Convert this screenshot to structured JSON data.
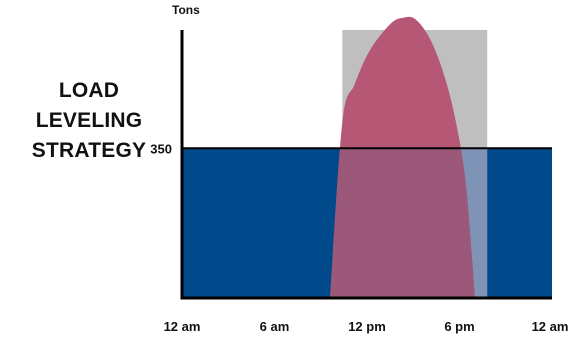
{
  "figure": {
    "title_lines": [
      "LOAD",
      "LEVELING",
      "STRATEGY"
    ]
  },
  "chart_data": {
    "type": "area",
    "title": "LOAD LEVELING STRATEGY",
    "ylabel": "Tons",
    "xlabel": "",
    "x_tick_labels": [
      "12 am",
      "6 am",
      "12 pm",
      "6 pm",
      "12 am"
    ],
    "x_tick_hours": [
      0,
      6,
      12,
      18,
      24
    ],
    "xlim": [
      0,
      24
    ],
    "ylim": [
      0,
      650
    ],
    "y_tick_labels": [
      "350"
    ],
    "y_tick_values": [
      350
    ],
    "reference_line": {
      "value": 350
    },
    "highlight_band": {
      "x_start": 10.4,
      "x_end": 19.8
    },
    "series": [
      {
        "kind": "constant-level",
        "x": [
          0,
          24
        ],
        "y": [
          350,
          350
        ]
      },
      {
        "kind": "peak-load",
        "x": [
          9.6,
          10.4,
          11.2,
          12.2,
          13.5,
          14.3,
          15.2,
          16.3,
          17.4,
          18.3,
          18.8,
          19.0
        ],
        "y": [
          0,
          410,
          500,
          580,
          640,
          655,
          650,
          590,
          470,
          300,
          100,
          0
        ]
      }
    ],
    "colors": {
      "level_fill": "#004a8c",
      "peak_fill": "#b65875",
      "overlap_fill": "#9b5878",
      "rise_edge": "#8e1a5a",
      "band": "#bfbfbf",
      "band_over_level": "#7f93b6",
      "axis": "#000000"
    }
  }
}
